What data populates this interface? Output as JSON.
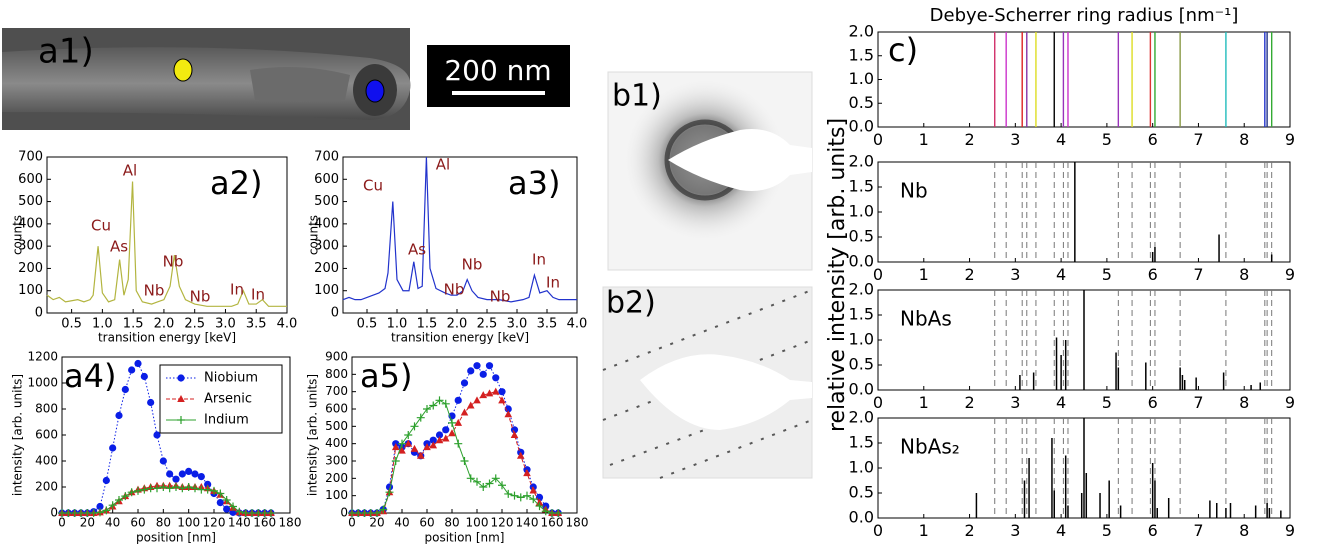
{
  "images": {
    "a1": "a1)",
    "scale_bar": "200 nm",
    "b1": "b1)",
    "b2": "b2)"
  },
  "chart_data": [
    {
      "type": "spectrum",
      "label": "a2)",
      "xlabel": "transition energy [keV]",
      "ylabel": "counts",
      "color": "#b3b540",
      "xlim": [
        0.1,
        4.0
      ],
      "ylim": [
        0,
        700
      ],
      "xticks": [
        0.5,
        {
          "value": 1,
          "label": "1.0"
        },
        1.5,
        {
          "value": 2,
          "label": "2.0"
        },
        2.5,
        {
          "value": 3,
          "label": "3.0"
        },
        3.5,
        {
          "value": 4,
          "label": "4.0"
        }
      ],
      "yticks": [
        0,
        100,
        200,
        300,
        400,
        500,
        600,
        700
      ],
      "x": [
        0.1,
        0.2,
        0.3,
        0.4,
        0.5,
        0.6,
        0.7,
        0.8,
        0.85,
        0.93,
        1.0,
        1.1,
        1.2,
        1.28,
        1.35,
        1.42,
        1.49,
        1.55,
        1.65,
        1.8,
        1.9,
        2.0,
        2.1,
        2.17,
        2.25,
        2.35,
        2.5,
        2.7,
        2.9,
        3.1,
        3.2,
        3.29,
        3.38,
        3.5,
        3.6,
        3.7,
        3.8,
        3.9,
        4.0
      ],
      "values": [
        80,
        60,
        70,
        50,
        55,
        60,
        50,
        60,
        80,
        300,
        90,
        50,
        60,
        240,
        80,
        150,
        590,
        100,
        50,
        40,
        50,
        60,
        120,
        260,
        120,
        60,
        40,
        30,
        30,
        30,
        40,
        100,
        40,
        40,
        60,
        30,
        30,
        30,
        30
      ],
      "annotations": [
        "Al",
        "Cu",
        "As",
        "Nb",
        "Nb",
        "Nb",
        "In",
        "In"
      ]
    },
    {
      "type": "spectrum",
      "label": "a3)",
      "xlabel": "transition energy [keV]",
      "ylabel": "counts",
      "color": "#2233cc",
      "xlim": [
        0.1,
        4.0
      ],
      "ylim": [
        0,
        700
      ],
      "xticks": [
        0.5,
        {
          "value": 1,
          "label": "1.0"
        },
        1.5,
        {
          "value": 2,
          "label": "2.0"
        },
        2.5,
        {
          "value": 3,
          "label": "3.0"
        },
        3.5,
        {
          "value": 4,
          "label": "4.0"
        }
      ],
      "yticks": [
        0,
        100,
        200,
        300,
        400,
        500,
        600,
        700
      ],
      "x": [
        0.1,
        0.2,
        0.3,
        0.4,
        0.5,
        0.6,
        0.7,
        0.8,
        0.85,
        0.93,
        1.0,
        1.1,
        1.2,
        1.28,
        1.35,
        1.42,
        1.49,
        1.55,
        1.65,
        1.8,
        1.9,
        2.0,
        2.1,
        2.17,
        2.25,
        2.35,
        2.5,
        2.7,
        2.9,
        3.1,
        3.2,
        3.29,
        3.38,
        3.5,
        3.6,
        3.7,
        3.8,
        3.9,
        4.0
      ],
      "values": [
        60,
        70,
        60,
        60,
        70,
        80,
        90,
        110,
        180,
        500,
        150,
        100,
        100,
        230,
        110,
        120,
        700,
        200,
        110,
        90,
        80,
        80,
        100,
        150,
        100,
        70,
        60,
        60,
        50,
        60,
        70,
        170,
        90,
        100,
        70,
        60,
        60,
        60,
        60
      ],
      "annotations": [
        "Cu",
        "Al",
        "As",
        "Nb",
        "Nb",
        "Nb",
        "In",
        "In"
      ]
    },
    {
      "type": "profile",
      "label": "a4)",
      "xlabel": "position [nm]",
      "ylabel": "intensity [arb. units]",
      "legend": "upper right",
      "xlim": [
        0,
        180
      ],
      "ylim": [
        0,
        1200
      ],
      "xticks": [
        0,
        20,
        40,
        60,
        80,
        100,
        120,
        140,
        160,
        180
      ],
      "yticks": [
        0,
        200,
        400,
        600,
        800,
        1000,
        1200
      ],
      "x": [
        0,
        5,
        10,
        15,
        20,
        25,
        30,
        35,
        40,
        45,
        50,
        55,
        60,
        65,
        70,
        75,
        80,
        85,
        90,
        95,
        100,
        105,
        110,
        115,
        120,
        125,
        130,
        135,
        140,
        145,
        150,
        155,
        160,
        165
      ],
      "series": [
        {
          "name": "Niobium",
          "color": "#0a1ee6",
          "marker": "circle",
          "values": [
            0,
            0,
            0,
            0,
            0,
            10,
            50,
            250,
            500,
            750,
            950,
            1100,
            1150,
            1050,
            850,
            600,
            400,
            300,
            260,
            300,
            320,
            300,
            280,
            220,
            150,
            80,
            30,
            5,
            0,
            0,
            0,
            0,
            0,
            0
          ]
        },
        {
          "name": "Arsenic",
          "color": "#d42020",
          "marker": "triangle",
          "values": [
            0,
            0,
            0,
            0,
            0,
            0,
            5,
            20,
            50,
            90,
            130,
            160,
            180,
            190,
            200,
            210,
            210,
            210,
            210,
            200,
            200,
            200,
            200,
            190,
            170,
            140,
            90,
            40,
            5,
            0,
            0,
            0,
            0,
            0
          ]
        },
        {
          "name": "Indium",
          "color": "#2ca02c",
          "marker": "plus",
          "values": [
            0,
            0,
            0,
            0,
            0,
            0,
            5,
            20,
            60,
            100,
            130,
            160,
            170,
            180,
            190,
            190,
            200,
            190,
            200,
            190,
            200,
            190,
            180,
            180,
            170,
            150,
            100,
            50,
            10,
            0,
            0,
            0,
            0,
            0
          ]
        }
      ]
    },
    {
      "type": "profile",
      "label": "a5)",
      "xlabel": "position [nm]",
      "ylabel": "intensity [arb. units]",
      "xlim": [
        0,
        180
      ],
      "ylim": [
        0,
        900
      ],
      "xticks": [
        0,
        20,
        40,
        60,
        80,
        100,
        120,
        140,
        160,
        180
      ],
      "yticks": [
        0,
        100,
        200,
        300,
        400,
        500,
        600,
        700,
        800,
        900
      ],
      "x": [
        0,
        5,
        10,
        15,
        20,
        25,
        30,
        35,
        40,
        45,
        50,
        55,
        60,
        65,
        70,
        75,
        80,
        85,
        90,
        95,
        100,
        105,
        110,
        115,
        120,
        125,
        130,
        135,
        140,
        145,
        150,
        155,
        160,
        165
      ],
      "series": [
        {
          "name": "Niobium",
          "color": "#0a1ee6",
          "marker": "circle",
          "values": [
            0,
            0,
            0,
            0,
            0,
            20,
            150,
            400,
            380,
            400,
            350,
            330,
            400,
            420,
            450,
            480,
            560,
            650,
            750,
            820,
            850,
            800,
            850,
            780,
            700,
            600,
            480,
            350,
            250,
            150,
            90,
            40,
            0,
            0
          ]
        },
        {
          "name": "Arsenic",
          "color": "#d42020",
          "marker": "triangle",
          "values": [
            0,
            0,
            0,
            0,
            0,
            10,
            120,
            380,
            360,
            400,
            370,
            330,
            380,
            390,
            420,
            430,
            460,
            520,
            580,
            620,
            650,
            680,
            690,
            700,
            650,
            570,
            450,
            330,
            230,
            130,
            60,
            20,
            0,
            0
          ]
        },
        {
          "name": "Indium",
          "color": "#2ca02c",
          "marker": "plus",
          "values": [
            0,
            0,
            0,
            0,
            0,
            20,
            120,
            300,
            400,
            450,
            500,
            550,
            600,
            620,
            650,
            630,
            520,
            400,
            300,
            200,
            180,
            150,
            170,
            200,
            160,
            110,
            100,
            90,
            100,
            80,
            40,
            10,
            0,
            0
          ]
        }
      ]
    },
    {
      "type": "stick",
      "label": "c)",
      "title": "Debye-Scherrer ring radius [nm⁻¹]",
      "ylabel": "relative intensity [arb. units]",
      "xlim": [
        0,
        9
      ],
      "ylim": [
        0,
        2
      ],
      "xticks": [
        0,
        1,
        2,
        3,
        4,
        5,
        6,
        7,
        8,
        9
      ],
      "yticks": [
        {
          "value": 0,
          "label": "0.0"
        },
        {
          "value": 0.5,
          "label": "0.5"
        },
        {
          "value": 1,
          "label": "1.0"
        },
        {
          "value": 1.5,
          "label": "1.5"
        },
        {
          "value": 2,
          "label": "2.0"
        }
      ],
      "rings": {
        "x": [
          2.55,
          2.8,
          3.15,
          3.25,
          3.45,
          3.85,
          4.05,
          4.15,
          5.25,
          5.55,
          5.95,
          6.05,
          6.6,
          7.6,
          8.45,
          8.5,
          8.6
        ],
        "colors": [
          "#d0306a",
          "#cc33cc",
          "#dd2222",
          "#8833aa",
          "#dddd22",
          "#000000",
          "#9933bb",
          "#cc33cc",
          "#9933bb",
          "#dddd22",
          "#dd3333",
          "#33aa33",
          "#889944",
          "#22bbbb",
          "#2233cc",
          "#223388",
          "#33aa33"
        ]
      },
      "series": [
        {
          "name": "Nb",
          "color": "#000000",
          "x": [
            4.3,
            6.0,
            6.05,
            7.45,
            8.6
          ],
          "values": [
            2.0,
            0.2,
            0.3,
            0.55,
            0.15
          ]
        },
        {
          "name": "NbAs",
          "color": "#000000",
          "x": [
            3.1,
            3.4,
            3.9,
            4.0,
            4.1,
            4.5,
            5.2,
            5.25,
            5.85,
            6.6,
            6.65,
            6.7,
            6.95,
            7.55,
            8.15,
            8.35
          ],
          "values": [
            0.3,
            0.35,
            1.05,
            0.7,
            1.0,
            2.0,
            0.75,
            0.45,
            0.55,
            0.45,
            0.3,
            0.2,
            0.25,
            0.35,
            0.1,
            0.15
          ]
        },
        {
          "name": "NbAs₂",
          "color": "#000000",
          "x": [
            2.15,
            3.2,
            3.3,
            3.8,
            3.85,
            4.1,
            4.15,
            4.45,
            4.5,
            4.55,
            4.85,
            5.05,
            5.3,
            6.0,
            6.05,
            6.1,
            6.35,
            7.25,
            7.4,
            7.6,
            7.7,
            8.25,
            8.5,
            8.55,
            8.8
          ],
          "values": [
            0.5,
            0.75,
            1.2,
            1.6,
            0.55,
            1.25,
            0.25,
            0.5,
            2.0,
            0.9,
            0.5,
            0.75,
            0.25,
            1.1,
            0.75,
            0.2,
            0.4,
            0.35,
            0.3,
            0.2,
            0.3,
            0.25,
            0.3,
            0.2,
            0.15
          ]
        }
      ]
    }
  ]
}
